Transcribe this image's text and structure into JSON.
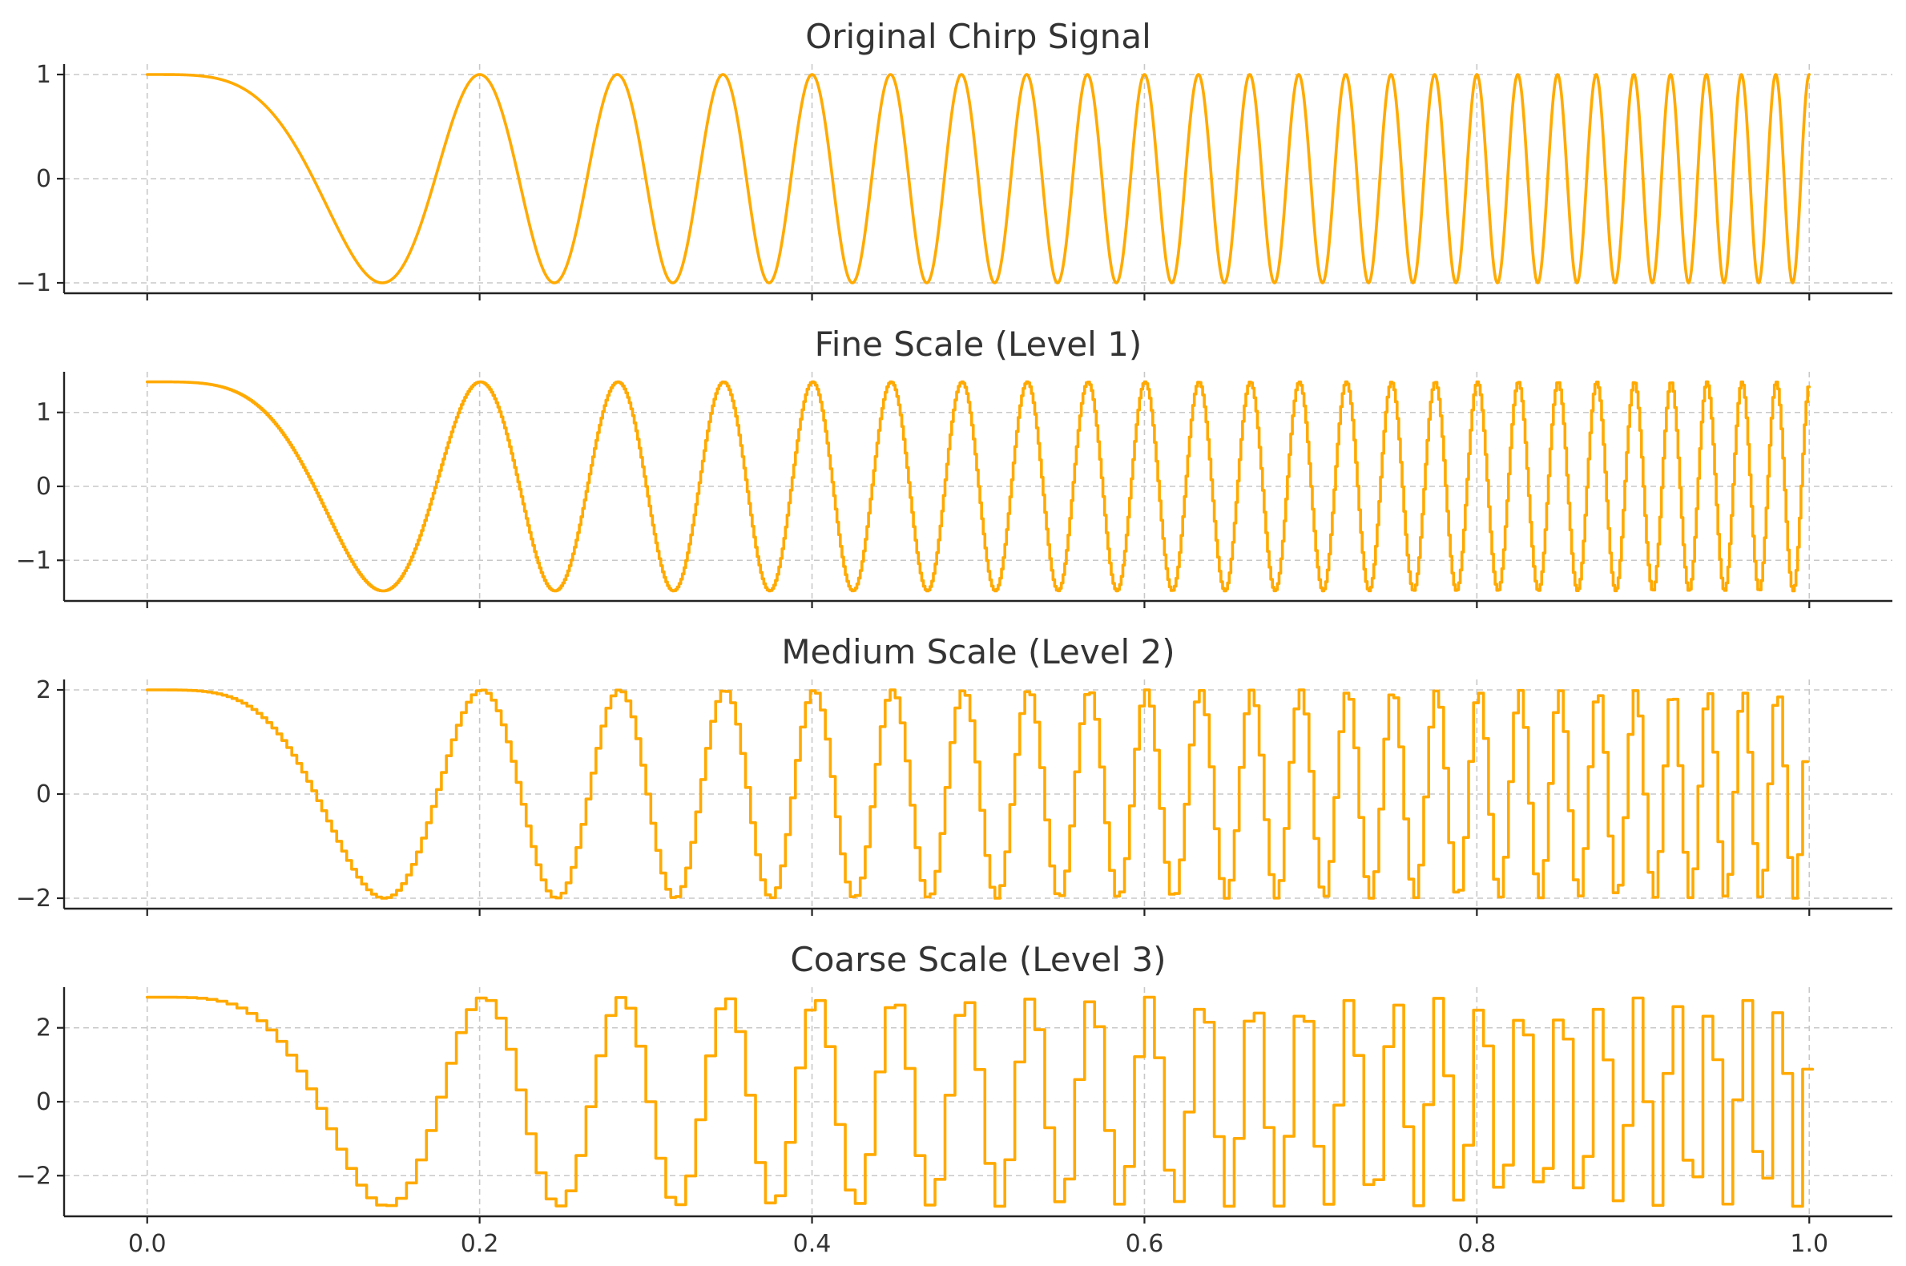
{
  "chart_data": [
    {
      "type": "line",
      "title": "Original Chirp Signal",
      "xlabel": "",
      "ylabel": "",
      "xlim": [
        -0.05,
        1.05
      ],
      "ylim": [
        -1.1,
        1.1
      ],
      "yticks": [
        -1,
        0,
        1
      ],
      "ytick_labels": [
        "−1",
        "0",
        "1"
      ],
      "xticks": [
        0.0,
        0.2,
        0.4,
        0.6,
        0.8,
        1.0
      ],
      "xtick_labels": [],
      "grid": true,
      "color": "#FFAA00",
      "series": [
        {
          "amplitude": 1.0,
          "f0": 0,
          "f1": 50,
          "duration": 1.0,
          "step": null
        }
      ]
    },
    {
      "type": "line",
      "title": "Fine Scale (Level 1)",
      "xlabel": "",
      "ylabel": "",
      "xlim": [
        -0.05,
        1.05
      ],
      "ylim": [
        -1.55,
        1.55
      ],
      "yticks": [
        -1,
        0,
        1
      ],
      "ytick_labels": [
        "−1",
        "0",
        "1"
      ],
      "xticks": [
        0.0,
        0.2,
        0.4,
        0.6,
        0.8,
        1.0
      ],
      "xtick_labels": [],
      "grid": true,
      "color": "#FFAA00",
      "series": [
        {
          "amplitude": 1.414,
          "f0": 0,
          "f1": 50,
          "duration": 1.0,
          "step": 0.001
        }
      ]
    },
    {
      "type": "line",
      "title": "Medium Scale (Level 2)",
      "xlabel": "",
      "ylabel": "",
      "xlim": [
        -0.05,
        1.05
      ],
      "ylim": [
        -2.2,
        2.2
      ],
      "yticks": [
        -2,
        0,
        2
      ],
      "ytick_labels": [
        "−2",
        "0",
        "2"
      ],
      "xticks": [
        0.0,
        0.2,
        0.4,
        0.6,
        0.8,
        1.0
      ],
      "xtick_labels": [],
      "grid": true,
      "color": "#FFAA00",
      "series": [
        {
          "amplitude": 2.0,
          "f0": 0,
          "f1": 50,
          "duration": 1.0,
          "step": 0.003
        }
      ]
    },
    {
      "type": "line",
      "title": "Coarse Scale (Level 3)",
      "xlabel": "",
      "ylabel": "",
      "xlim": [
        -0.05,
        1.05
      ],
      "ylim": [
        -3.1,
        3.1
      ],
      "yticks": [
        -2,
        0,
        2
      ],
      "ytick_labels": [
        "−2",
        "0",
        "2"
      ],
      "xticks": [
        0.0,
        0.2,
        0.4,
        0.6,
        0.8,
        1.0
      ],
      "xtick_labels": [
        "0.0",
        "0.2",
        "0.4",
        "0.6",
        "0.8",
        "1.0"
      ],
      "grid": true,
      "color": "#FFAA00",
      "series": [
        {
          "amplitude": 2.828,
          "f0": 0,
          "f1": 50,
          "duration": 1.0,
          "step": 0.006
        }
      ]
    }
  ]
}
